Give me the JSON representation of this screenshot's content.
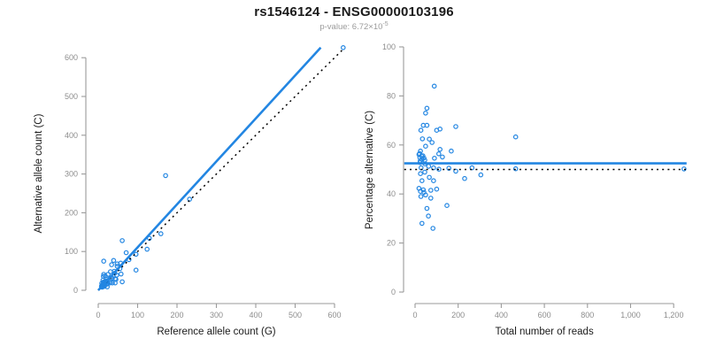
{
  "header": {
    "title": "rs1546124 - ENSG00000103196",
    "subtitle_label": "p-value: ",
    "pvalue_base": "6.72×10",
    "pvalue_exponent": "-5"
  },
  "colors": {
    "accent_blue": "#2386E2",
    "dotted_black": "#000000",
    "axis_gray": "#9a9a9a",
    "tick_text_gray": "#8d8d8d",
    "title_black": "#1a1a1a",
    "subtitle_gray": "#9b9b9b"
  },
  "chart_data": [
    {
      "id": "allele-count-scatter",
      "type": "scatter",
      "xlabel": "Reference allele count (G)",
      "ylabel": "Alternative allele count (C)",
      "xlim": [
        -30,
        632
      ],
      "ylim": [
        -30,
        644
      ],
      "x_ticks": [
        0,
        100,
        200,
        300,
        400,
        500,
        600
      ],
      "x_tick_labels": [
        "0",
        "100",
        "200",
        "300",
        "400",
        "500",
        "600"
      ],
      "y_ticks": [
        0,
        100,
        200,
        300,
        400,
        500,
        600
      ],
      "y_tick_labels": [
        "0",
        "100",
        "200",
        "300",
        "400",
        "500",
        "600"
      ],
      "grid": false,
      "legend": false,
      "lines": [
        {
          "name": "identity-line",
          "from": [
            0,
            0
          ],
          "to": [
            625,
            625
          ],
          "style": "dotted",
          "color": "#000000",
          "width": 1.5
        },
        {
          "name": "fit-line",
          "from": [
            0,
            0
          ],
          "to": [
            565,
            626
          ],
          "style": "solid",
          "color": "#2386E2",
          "width": 2.6
        }
      ],
      "points": [
        [
          14,
          75
        ],
        [
          14,
          41
        ],
        [
          13,
          36
        ],
        [
          12,
          26
        ],
        [
          18,
          37
        ],
        [
          9,
          18
        ],
        [
          34,
          66
        ],
        [
          39,
          77
        ],
        [
          61,
          128
        ],
        [
          171,
          296
        ],
        [
          13,
          21
        ],
        [
          25,
          41
        ],
        [
          31,
          48
        ],
        [
          20,
          29
        ],
        [
          48,
          68
        ],
        [
          48,
          62
        ],
        [
          71,
          97
        ],
        [
          11,
          14
        ],
        [
          8,
          10
        ],
        [
          16,
          20
        ],
        [
          10,
          12
        ],
        [
          19,
          22
        ],
        [
          15,
          17
        ],
        [
          41,
          49
        ],
        [
          57,
          70
        ],
        [
          21,
          24
        ],
        [
          11,
          12
        ],
        [
          22,
          24
        ],
        [
          31,
          32
        ],
        [
          14,
          14
        ],
        [
          42,
          44
        ],
        [
          78,
          79
        ],
        [
          130,
          134
        ],
        [
          55,
          56
        ],
        [
          232,
          235
        ],
        [
          622,
          626
        ],
        [
          96,
          93
        ],
        [
          23,
          22
        ],
        [
          13,
          12
        ],
        [
          35,
          31
        ],
        [
          124,
          106
        ],
        [
          159,
          146
        ],
        [
          17,
          15
        ],
        [
          47,
          39
        ],
        [
          10,
          8
        ],
        [
          22,
          16
        ],
        [
          15,
          10
        ],
        [
          24,
          17
        ],
        [
          43,
          30
        ],
        [
          58,
          42
        ],
        [
          16,
          11
        ],
        [
          30,
          19
        ],
        [
          45,
          28
        ],
        [
          96,
          52
        ],
        [
          36,
          19
        ],
        [
          43,
          19
        ],
        [
          23,
          9
        ],
        [
          61,
          22
        ],
        [
          11,
          13
        ],
        [
          13,
          17
        ],
        [
          9,
          12
        ]
      ]
    },
    {
      "id": "percentage-vs-reads-scatter",
      "type": "scatter",
      "xlabel": "Total number of reads",
      "ylabel": "Percentage alternative (C)",
      "xlim": [
        -52,
        1262
      ],
      "ylim": [
        -4,
        104
      ],
      "x_ticks": [
        0,
        200,
        400,
        600,
        800,
        1000,
        1200
      ],
      "x_tick_labels": [
        "0",
        "200",
        "400",
        "600",
        "800",
        "1,000",
        "1,200"
      ],
      "y_ticks": [
        0,
        20,
        40,
        60,
        80,
        100
      ],
      "y_tick_labels": [
        "0",
        "20",
        "40",
        "60",
        "80",
        "100"
      ],
      "grid": false,
      "legend": false,
      "lines": [
        {
          "name": "reference-50pct-line",
          "from": [
            -50,
            50
          ],
          "to": [
            1260,
            50
          ],
          "style": "dotted",
          "color": "#000000",
          "width": 1.5
        },
        {
          "name": "fit-line",
          "from": [
            -50,
            52.5
          ],
          "to": [
            1260,
            52.5
          ],
          "style": "solid",
          "color": "#2386E2",
          "width": 2.6
        }
      ],
      "points": [
        [
          89,
          84
        ],
        [
          55,
          75
        ],
        [
          49,
          73
        ],
        [
          38,
          68
        ],
        [
          55,
          68
        ],
        [
          27,
          66
        ],
        [
          100,
          66
        ],
        [
          116,
          66.5
        ],
        [
          189,
          67.5
        ],
        [
          467,
          63.3
        ],
        [
          34,
          62.5
        ],
        [
          66,
          62.4
        ],
        [
          79,
          61
        ],
        [
          49,
          59.5
        ],
        [
          116,
          58.2
        ],
        [
          110,
          56.4
        ],
        [
          168,
          57.5
        ],
        [
          25,
          57.5
        ],
        [
          18,
          56.1
        ],
        [
          36,
          55.6
        ],
        [
          22,
          54.9
        ],
        [
          41,
          54.7
        ],
        [
          32,
          54.1
        ],
        [
          90,
          54.6
        ],
        [
          127,
          55.1
        ],
        [
          45,
          53.8
        ],
        [
          23,
          52.8
        ],
        [
          46,
          52.3
        ],
        [
          63,
          51.3
        ],
        [
          28,
          50.7
        ],
        [
          86,
          50.7
        ],
        [
          157,
          50.5
        ],
        [
          264,
          50.7
        ],
        [
          111,
          50.1
        ],
        [
          467,
          50.3
        ],
        [
          1248,
          50.2
        ],
        [
          189,
          49.3
        ],
        [
          45,
          48.9
        ],
        [
          25,
          48.3
        ],
        [
          66,
          46.8
        ],
        [
          230,
          46.3
        ],
        [
          305,
          47.8
        ],
        [
          32,
          45.4
        ],
        [
          86,
          45.4
        ],
        [
          18,
          42.3
        ],
        [
          38,
          41.7
        ],
        [
          25,
          41.1
        ],
        [
          41,
          40.7
        ],
        [
          73,
          41.5
        ],
        [
          100,
          42
        ],
        [
          27,
          39
        ],
        [
          49,
          39.6
        ],
        [
          73,
          38.3
        ],
        [
          148,
          35.3
        ],
        [
          55,
          34.1
        ],
        [
          62,
          31
        ],
        [
          32,
          28
        ],
        [
          83,
          26
        ],
        [
          24,
          53.5
        ],
        [
          30,
          55.5
        ],
        [
          21,
          56.5
        ]
      ]
    }
  ]
}
